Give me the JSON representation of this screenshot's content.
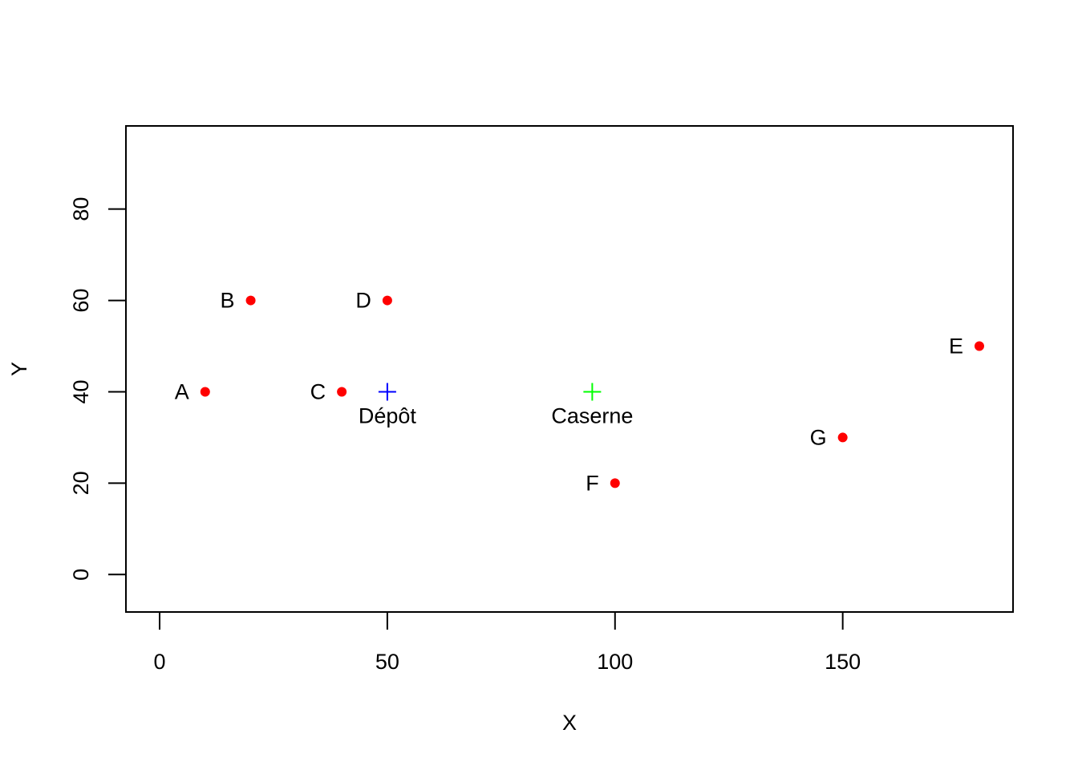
{
  "chart_data": {
    "type": "scatter",
    "title": "",
    "xlabel": "X",
    "ylabel": "Y",
    "xlim": [
      -7.4,
      187.4
    ],
    "ylim": [
      -8.2,
      98.2
    ],
    "xticks": [
      0,
      50,
      100,
      150
    ],
    "yticks": [
      0,
      20,
      40,
      60,
      80
    ],
    "grid": false,
    "points": [
      {
        "label": "A",
        "x": 10,
        "y": 40
      },
      {
        "label": "B",
        "x": 20,
        "y": 60
      },
      {
        "label": "C",
        "x": 40,
        "y": 40
      },
      {
        "label": "D",
        "x": 50,
        "y": 60
      },
      {
        "label": "E",
        "x": 180,
        "y": 50
      },
      {
        "label": "F",
        "x": 100,
        "y": 20
      },
      {
        "label": "G",
        "x": 150,
        "y": 30
      }
    ],
    "point_color": "#ff0000",
    "special_points": [
      {
        "label": "Dépôt",
        "x": 50,
        "y": 40,
        "marker": "plus",
        "color": "#0000ff"
      },
      {
        "label": "Caserne",
        "x": 95,
        "y": 40,
        "marker": "plus",
        "color": "#00ff00"
      }
    ]
  }
}
